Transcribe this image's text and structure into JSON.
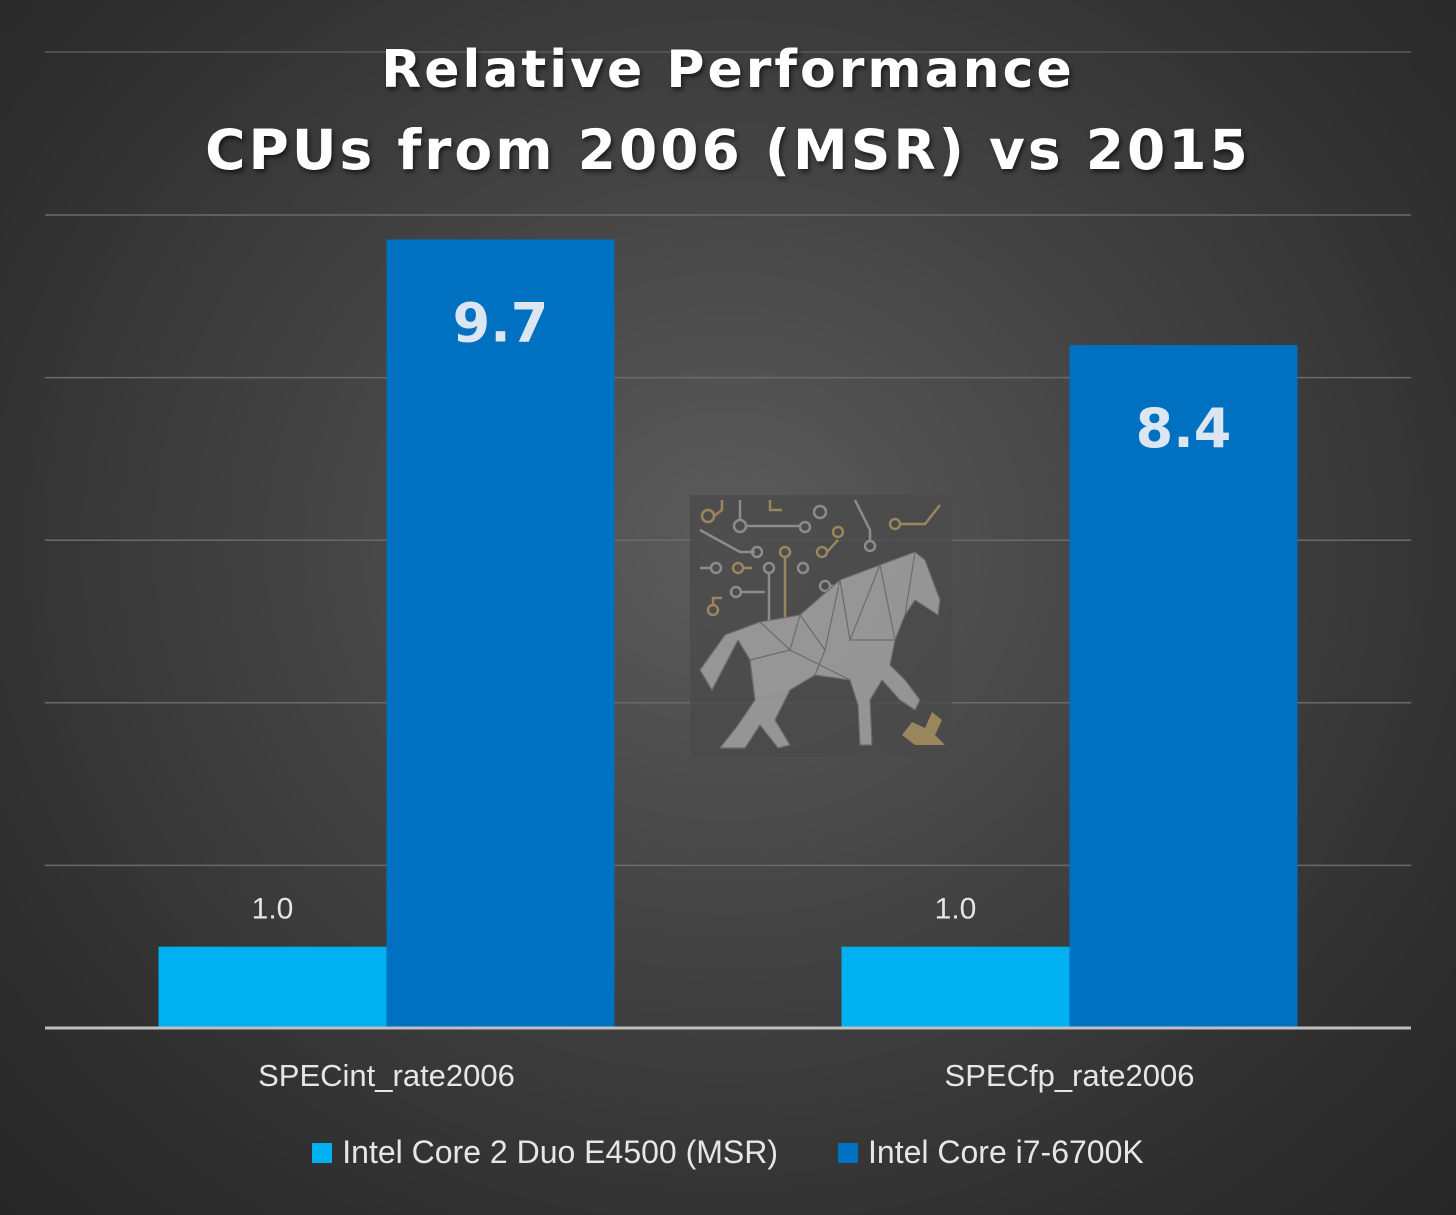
{
  "chart_data": {
    "type": "bar",
    "title": "Relative Performance",
    "subtitle": "CPUs from 2006 (MSR) vs 2015",
    "categories": [
      "SPECint_rate2006",
      "SPECfp_rate2006"
    ],
    "series": [
      {
        "name": "Intel Core 2 Duo E4500 (MSR)",
        "values": [
          1.0,
          1.0
        ],
        "color": "#00b0f0"
      },
      {
        "name": "Intel Core i7-6700K",
        "values": [
          9.7,
          8.4
        ],
        "color": "#0070c0"
      }
    ],
    "data_labels": [
      [
        "1.0",
        "1.0"
      ],
      [
        "9.7",
        "8.4"
      ]
    ],
    "ylim": [
      0,
      10
    ],
    "grid": true,
    "legend": "bottom",
    "xlabel": "",
    "ylabel": ""
  }
}
